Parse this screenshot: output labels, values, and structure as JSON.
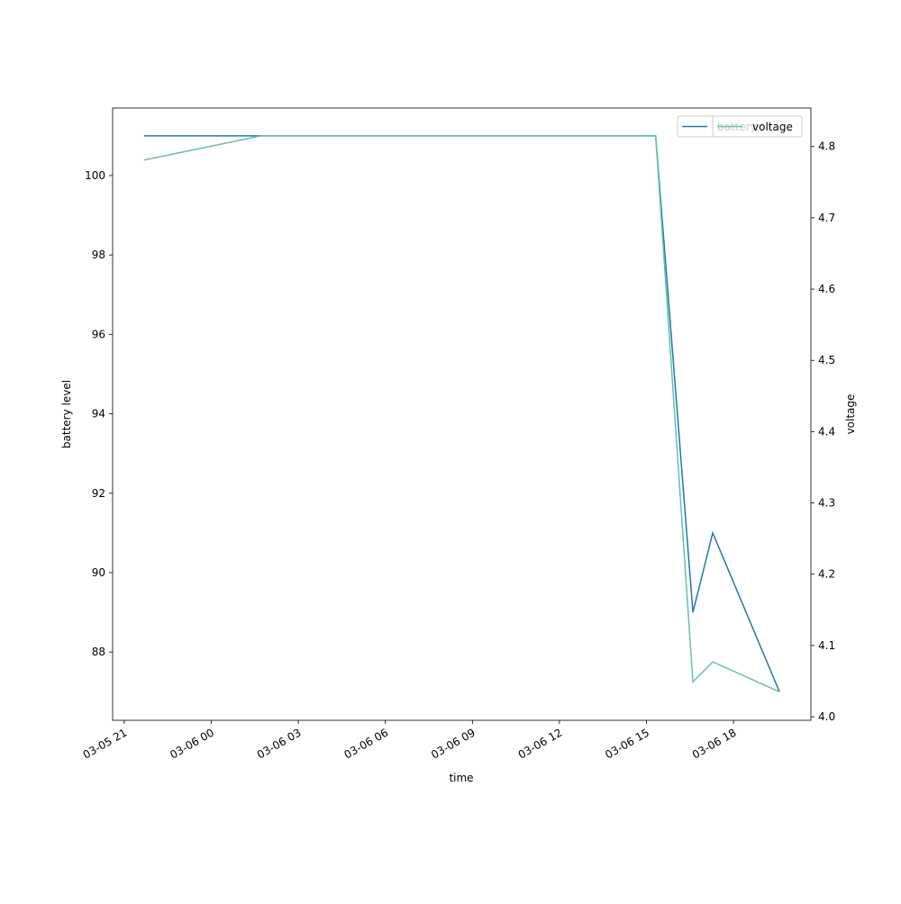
{
  "chart_data": {
    "type": "line",
    "x_label": "time",
    "y_label": "battery level",
    "y2_label": "voltage",
    "x": [
      "03-05 21:41",
      "03-06 01:43",
      "03-06 15:19",
      "03-06 16:36",
      "03-06 17:17",
      "03-06 19:35"
    ],
    "series": [
      {
        "name": "battery",
        "color": "#1f77b4",
        "values": [
          101,
          101,
          101,
          89,
          91,
          87
        ]
      },
      {
        "name": "voltage",
        "color": "#66c2a5",
        "axis": "y2",
        "values": [
          4.781,
          4.815,
          4.815,
          4.049,
          4.077,
          4.035
        ]
      }
    ],
    "xlim": [
      "03-05 20:36",
      "03-06 20:40"
    ],
    "xticks": [
      "03-05 21",
      "03-06 00",
      "03-06 03",
      "03-06 06",
      "03-06 09",
      "03-06 12",
      "03-06 15",
      "03-06 18"
    ],
    "ylim": [
      86.28,
      101.7
    ],
    "yticks": [
      88,
      90,
      92,
      94,
      96,
      98,
      100
    ],
    "y2lim": [
      3.995,
      4.854
    ],
    "y2ticks": [
      {
        "value": 4,
        "label": "4.0"
      },
      4.1,
      4.2,
      4.3,
      4.4,
      4.5,
      4.6,
      4.7,
      4.8
    ],
    "legend": "upper right",
    "grid": false
  }
}
